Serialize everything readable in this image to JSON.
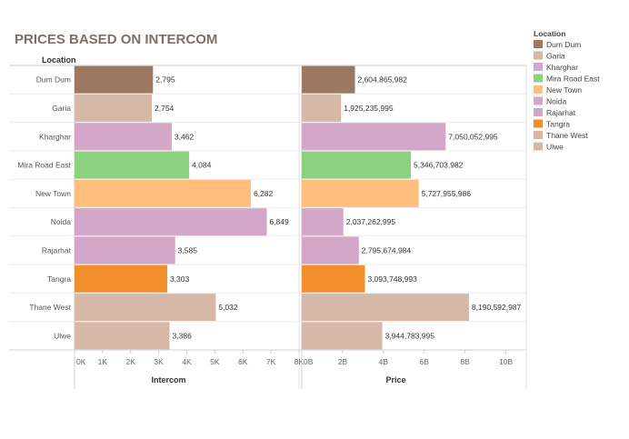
{
  "chart_data": {
    "type": "bar",
    "orientation": "horizontal",
    "title": "PRICES BASED ON INTERCOM",
    "row_header": "Location",
    "categories": [
      "Dum Dum",
      "Garia",
      "Kharghar",
      "Mira Road East",
      "New Town",
      "Noida",
      "Rajarhat",
      "Tangra",
      "Thane West",
      "Ulwe"
    ],
    "colors": [
      "#9c7761",
      "#d7b8a7",
      "#d4a6c8",
      "#8cd17d",
      "#ffbe7d",
      "#d4a6c8",
      "#d4a6c8",
      "#f28e2b",
      "#d7b8a7",
      "#d7b8a7"
    ],
    "panels": [
      {
        "name": "intercom",
        "xlabel": "Intercom",
        "xlim": [
          0,
          8000
        ],
        "ticks": [
          0,
          1000,
          2000,
          3000,
          4000,
          5000,
          6000,
          7000,
          8000
        ],
        "tick_labels": [
          "0K",
          "1K",
          "2K",
          "3K",
          "4K",
          "5K",
          "6K",
          "7K",
          "8K"
        ],
        "values": [
          2795,
          2754,
          3462,
          4084,
          6282,
          6849,
          3585,
          3303,
          5032,
          3386
        ],
        "value_labels": [
          "2,795",
          "2,754",
          "3,462",
          "4,084",
          "6,282",
          "6,849",
          "3,585",
          "3,303",
          "5,032",
          "3,386"
        ]
      },
      {
        "name": "price",
        "xlabel": "Price",
        "xlim": [
          0,
          11000000000
        ],
        "ticks": [
          0,
          2000000000,
          4000000000,
          6000000000,
          8000000000,
          10000000000
        ],
        "tick_labels": [
          "0B",
          "2B",
          "4B",
          "6B",
          "8B",
          "10B"
        ],
        "values": [
          2604865982,
          1925235995,
          7050052995,
          5346703982,
          5727955986,
          2037262995,
          2795674984,
          3093748993,
          8190592987,
          3944783995
        ],
        "value_labels": [
          "2,604,865,982",
          "1,925,235,995",
          "7,050,052,995",
          "5,346,703,982",
          "5,727,955,986",
          "2,037,262,995",
          "2,795,674,984",
          "3,093,748,993",
          "8,190,592,987",
          "3,944,783,995"
        ]
      }
    ],
    "legend": {
      "title": "Location",
      "placement": "right",
      "entries": [
        "Dum Dum",
        "Garia",
        "Kharghar",
        "Mira Road East",
        "New Town",
        "Noida",
        "Rajarhat",
        "Tangra",
        "Thane West",
        "Ulwe"
      ],
      "colors": [
        "#9c7761",
        "#d7b8a7",
        "#d4a6c8",
        "#8cd17d",
        "#ffbe7d",
        "#d4a6c8",
        "#d4a6c8",
        "#f28e2b",
        "#d7b8a7",
        "#d7b8a7"
      ]
    },
    "grid": false
  }
}
